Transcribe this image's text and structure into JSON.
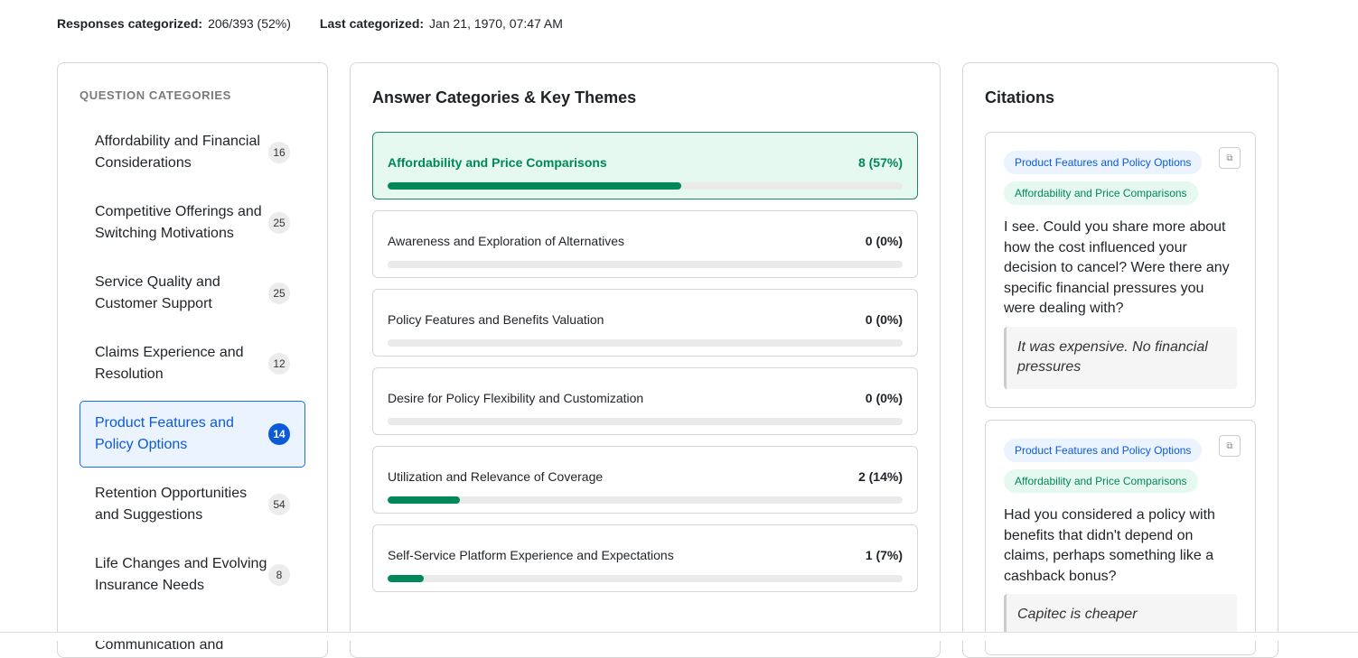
{
  "summary": {
    "responses_label": "Responses categorized:",
    "responses_value": "206/393 (52%)",
    "last_label": "Last categorized:",
    "last_value": "Jan 21, 1970, 07:47 AM"
  },
  "question_categories": {
    "heading": "QUESTION CATEGORIES",
    "items": [
      {
        "label": "Affordability and Financial Considerations",
        "count": "16"
      },
      {
        "label": "Competitive Offerings and Switching Motivations",
        "count": "25"
      },
      {
        "label": "Service Quality and Customer Support",
        "count": "25"
      },
      {
        "label": "Claims Experience and Resolution",
        "count": "12"
      },
      {
        "label": "Product Features and Policy Options",
        "count": "14",
        "selected": true
      },
      {
        "label": "Retention Opportunities and Suggestions",
        "count": "54"
      },
      {
        "label": "Life Changes and Evolving Insurance Needs",
        "count": "8"
      },
      {
        "label": "Communication and",
        "count": ""
      }
    ]
  },
  "answer_categories": {
    "heading": "Answer Categories & Key Themes",
    "items": [
      {
        "label": "Affordability and Price Comparisons",
        "value": "8 (57%)",
        "percent": 57,
        "selected": true
      },
      {
        "label": "Awareness and Exploration of Alternatives",
        "value": "0 (0%)",
        "percent": 0
      },
      {
        "label": "Policy Features and Benefits Valuation",
        "value": "0 (0%)",
        "percent": 0
      },
      {
        "label": "Desire for Policy Flexibility and Customization",
        "value": "0 (0%)",
        "percent": 0
      },
      {
        "label": "Utilization and Relevance of Coverage",
        "value": "2 (14%)",
        "percent": 14
      },
      {
        "label": "Self-Service Platform Experience and Expectations",
        "value": "1 (7%)",
        "percent": 7
      }
    ]
  },
  "citations": {
    "heading": "Citations",
    "items": [
      {
        "tags": [
          "Product Features and Policy Options",
          "Affordability and Price Comparisons"
        ],
        "question": "I see. Could you share more about how the cost influenced your decision to cancel? Were there any specific financial pressures you were dealing with?",
        "answer": "It was expensive. No financial pressures"
      },
      {
        "tags": [
          "Product Features and Policy Options",
          "Affordability and Price Comparisons"
        ],
        "question": "Had you considered a policy with benefits that didn't depend on claims, perhaps something like a cashback bonus?",
        "answer": "Capitec is cheaper"
      }
    ]
  },
  "colors": {
    "accent_blue": "#0b5ad8",
    "accent_green": "#00875a"
  },
  "icons": {
    "copy": "copy-icon"
  }
}
